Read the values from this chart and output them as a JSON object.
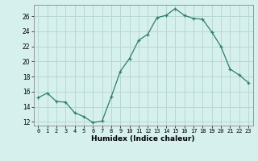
{
  "x": [
    0,
    1,
    2,
    3,
    4,
    5,
    6,
    7,
    8,
    9,
    10,
    11,
    12,
    13,
    14,
    15,
    16,
    17,
    18,
    19,
    20,
    21,
    22,
    23
  ],
  "y": [
    15.2,
    15.8,
    14.7,
    14.6,
    13.2,
    12.7,
    11.9,
    12.1,
    15.3,
    18.7,
    20.4,
    22.8,
    23.6,
    25.8,
    26.1,
    27.0,
    26.1,
    25.7,
    25.6,
    23.9,
    22.0,
    19.0,
    18.2,
    17.2
  ],
  "line_color": "#2e7d6e",
  "marker": "+",
  "marker_size": 3,
  "bg_color": "#d6f0ee",
  "grid_color": "#b8d8d4",
  "xlabel": "Humidex (Indice chaleur)",
  "ylabel_ticks": [
    12,
    14,
    16,
    18,
    20,
    22,
    24,
    26
  ],
  "xlim": [
    -0.5,
    23.5
  ],
  "ylim": [
    11.5,
    27.5
  ],
  "x_tick_fontsize": 5.0,
  "y_tick_fontsize": 5.5,
  "xlabel_fontsize": 6.5
}
